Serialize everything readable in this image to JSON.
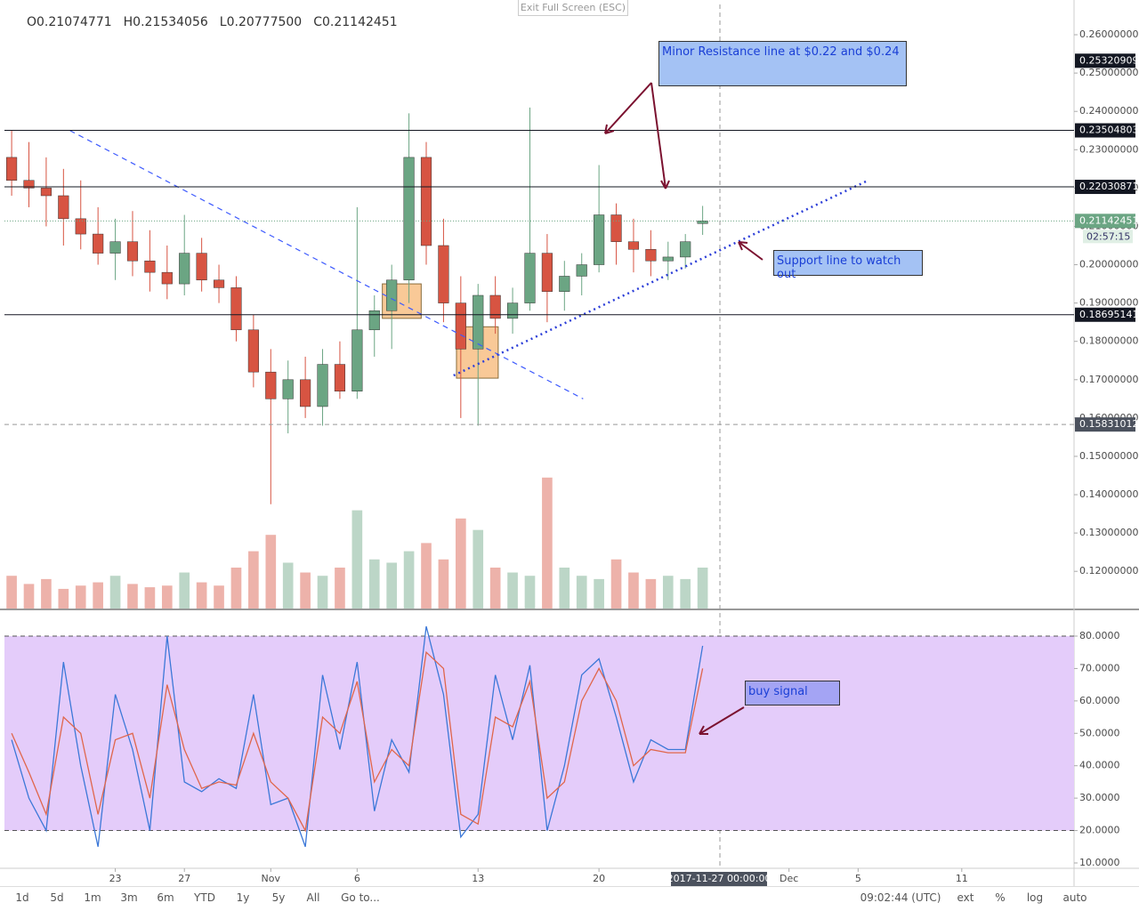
{
  "toolbar": {
    "exit_fullscreen": "Exit Full Screen (ESC)",
    "ohlc": [
      "O0.21074771",
      "H0.21534056",
      "L0.20777500",
      "C0.21142451"
    ],
    "ranges": [
      "1d",
      "5d",
      "1m",
      "3m",
      "6m",
      "YTD",
      "1y",
      "5y",
      "All",
      "Go to..."
    ],
    "clock": "09:02:44 (UTC)",
    "options": [
      "ext",
      "%",
      "log",
      "auto"
    ]
  },
  "chart_data": [
    {
      "type": "candlestick",
      "x": [
        "2017-10-17",
        "2017-10-18",
        "2017-10-19",
        "2017-10-20",
        "2017-10-21",
        "2017-10-22",
        "2017-10-23",
        "2017-10-24",
        "2017-10-25",
        "2017-10-26",
        "2017-10-27",
        "2017-10-28",
        "2017-10-29",
        "2017-10-30",
        "2017-10-31",
        "2017-11-01",
        "2017-11-02",
        "2017-11-03",
        "2017-11-04",
        "2017-11-05",
        "2017-11-06",
        "2017-11-07",
        "2017-11-08",
        "2017-11-09",
        "2017-11-10",
        "2017-11-11",
        "2017-11-12",
        "2017-11-13",
        "2017-11-14",
        "2017-11-15",
        "2017-11-16",
        "2017-11-17",
        "2017-11-18",
        "2017-11-19",
        "2017-11-20",
        "2017-11-21",
        "2017-11-22",
        "2017-11-23",
        "2017-11-24",
        "2017-11-25",
        "2017-11-26"
      ],
      "open": [
        0.228,
        0.222,
        0.22,
        0.218,
        0.212,
        0.208,
        0.203,
        0.206,
        0.201,
        0.198,
        0.195,
        0.203,
        0.196,
        0.194,
        0.183,
        0.172,
        0.165,
        0.17,
        0.163,
        0.174,
        0.167,
        0.183,
        0.188,
        0.196,
        0.228,
        0.205,
        0.19,
        0.178,
        0.192,
        0.186,
        0.19,
        0.203,
        0.193,
        0.197,
        0.2,
        0.213,
        0.206,
        0.204,
        0.201,
        0.202,
        0.21074771
      ],
      "high": [
        0.235,
        0.232,
        0.228,
        0.225,
        0.222,
        0.215,
        0.212,
        0.214,
        0.209,
        0.205,
        0.213,
        0.207,
        0.2,
        0.197,
        0.187,
        0.178,
        0.175,
        0.176,
        0.178,
        0.18,
        0.215,
        0.192,
        0.2,
        0.2395,
        0.232,
        0.212,
        0.197,
        0.195,
        0.197,
        0.194,
        0.241,
        0.208,
        0.201,
        0.203,
        0.226,
        0.216,
        0.212,
        0.209,
        0.206,
        0.208,
        0.21534056
      ],
      "low": [
        0.218,
        0.215,
        0.21,
        0.205,
        0.204,
        0.2,
        0.196,
        0.197,
        0.193,
        0.191,
        0.192,
        0.193,
        0.19,
        0.18,
        0.168,
        0.1375,
        0.156,
        0.16,
        0.158,
        0.165,
        0.165,
        0.176,
        0.178,
        0.19,
        0.2,
        0.185,
        0.16,
        0.158,
        0.182,
        0.182,
        0.188,
        0.185,
        0.188,
        0.192,
        0.198,
        0.2,
        0.198,
        0.197,
        0.196,
        0.199,
        0.207775
      ],
      "close": [
        0.222,
        0.22,
        0.218,
        0.212,
        0.208,
        0.203,
        0.206,
        0.201,
        0.198,
        0.195,
        0.203,
        0.196,
        0.194,
        0.183,
        0.172,
        0.165,
        0.17,
        0.163,
        0.174,
        0.167,
        0.183,
        0.188,
        0.196,
        0.228,
        0.205,
        0.19,
        0.178,
        0.192,
        0.186,
        0.19,
        0.203,
        0.193,
        0.197,
        0.2,
        0.213,
        0.206,
        0.204,
        0.201,
        0.202,
        0.206,
        0.21142451
      ],
      "up_color": "#6ba583",
      "down_color": "#d75442",
      "volume": {
        "values": [
          20,
          15,
          18,
          12,
          14,
          16,
          20,
          15,
          13,
          14,
          22,
          16,
          14,
          25,
          35,
          45,
          28,
          22,
          20,
          25,
          60,
          30,
          28,
          35,
          40,
          30,
          55,
          48,
          25,
          22,
          20,
          80,
          25,
          20,
          18,
          30,
          22,
          18,
          20,
          18,
          25
        ],
        "lim": [
          0,
          100
        ]
      },
      "xlim": [
        "2017-10-16 14:00",
        "2017-12-17 12:00"
      ],
      "xticks": [
        {
          "value": "2017-10-23",
          "label": "23"
        },
        {
          "value": "2017-10-27",
          "label": "27"
        },
        {
          "value": "2017-11-01",
          "label": "Nov"
        },
        {
          "value": "2017-11-06",
          "label": "6"
        },
        {
          "value": "2017-11-13",
          "label": "13"
        },
        {
          "value": "2017-11-20",
          "label": "20"
        },
        {
          "value": "2017-12-01",
          "label": "Dec"
        },
        {
          "value": "2017-12-05",
          "label": "5"
        },
        {
          "value": "2017-12-11",
          "label": "11"
        }
      ],
      "ylim": [
        0.1103,
        0.2679
      ],
      "yticks": [
        {
          "value": 0.26,
          "label": "0.26000000"
        },
        {
          "value": 0.25,
          "label": "0.25000000"
        },
        {
          "value": 0.24,
          "label": "0.24000000"
        },
        {
          "value": 0.23,
          "label": "0.23000000"
        },
        {
          "value": 0.22,
          "label": "0.22000000"
        },
        {
          "value": 0.21,
          "label": "0.21000000"
        },
        {
          "value": 0.2,
          "label": "0.20000000"
        },
        {
          "value": 0.19,
          "label": "0.19000000"
        },
        {
          "value": 0.18,
          "label": "0.18000000"
        },
        {
          "value": 0.17,
          "label": "0.17000000"
        },
        {
          "value": 0.16,
          "label": "0.16000000"
        },
        {
          "value": 0.15,
          "label": "0.15000000"
        },
        {
          "value": 0.14,
          "label": "0.14000000"
        },
        {
          "value": 0.13,
          "label": "0.13000000"
        },
        {
          "value": 0.12,
          "label": "0.12000000"
        }
      ],
      "price_markers": [
        {
          "value": 0.25320909,
          "label": "0.25320909",
          "color": "#131722",
          "line": false
        },
        {
          "value": 0.23504803,
          "label": "0.23504803",
          "color": "#131722",
          "line": true
        },
        {
          "value": 0.22030871,
          "label": "0.22030871",
          "color": "#131722",
          "line": true
        },
        {
          "value": 0.21142451,
          "label": "0.21142451",
          "color": "#6ba583",
          "line": true
        },
        {
          "value": 0.18695141,
          "label": "0.18695141",
          "color": "#131722",
          "line": true
        }
      ],
      "countdown": "02:57:15",
      "crosshair": {
        "x": "2017-11-27 00:00:00",
        "y": {
          "value": 0.15831012,
          "label": "0.15831012"
        }
      },
      "trend_lines": [
        {
          "style": "dashed",
          "color": "#3d5afe",
          "points": [
            [
              "2017-10-20 09:00",
              0.235
            ],
            [
              "2017-11-19 02:00",
              0.165
            ]
          ]
        },
        {
          "style": "dotted",
          "color": "#2d3fd8",
          "points": [
            [
              "2017-11-11 14:00",
              0.1711
            ],
            [
              "2017-12-05 13:00",
              0.2219
            ]
          ]
        }
      ],
      "boxes": [
        {
          "color": "#f6b26b",
          "x": [
            "2017-11-07 11:00",
            "2017-11-09 17:00"
          ],
          "y": [
            0.186,
            0.195
          ]
        },
        {
          "color": "#f6b26b",
          "x": [
            "2017-11-11 18:00",
            "2017-11-14 04:00"
          ],
          "y": [
            0.1704,
            0.1838
          ]
        }
      ],
      "annotations": [
        "Minor Resistance  line at $0.22 and $0.24",
        "Support line to watch out"
      ]
    },
    {
      "type": "line",
      "series": [
        {
          "color": "#3c78d8",
          "values": [
            48,
            30,
            20,
            72,
            40,
            15,
            62,
            45,
            20,
            80,
            35,
            32,
            36,
            33,
            62,
            28,
            30,
            15,
            68,
            45,
            72,
            26,
            48,
            38,
            83,
            62,
            18,
            25,
            68,
            48,
            71,
            20,
            40,
            68,
            73,
            55,
            35,
            48,
            45,
            45,
            77
          ]
        },
        {
          "color": "#e0664b",
          "values": [
            50,
            38,
            25,
            55,
            50,
            25,
            48,
            50,
            30,
            65,
            45,
            33,
            35,
            34,
            50,
            35,
            30,
            20,
            55,
            50,
            66,
            35,
            45,
            40,
            75,
            70,
            25,
            22,
            55,
            52,
            66,
            30,
            35,
            60,
            70,
            60,
            40,
            45,
            44,
            44,
            70
          ]
        }
      ],
      "ylim": [
        8.35,
        87.96
      ],
      "yticks": [
        {
          "value": 80,
          "label": "80.0000"
        },
        {
          "value": 70,
          "label": "70.0000"
        },
        {
          "value": 60,
          "label": "60.0000"
        },
        {
          "value": 50,
          "label": "50.0000"
        },
        {
          "value": 40,
          "label": "40.0000"
        },
        {
          "value": 30,
          "label": "30.0000"
        },
        {
          "value": 20,
          "label": "20.0000"
        },
        {
          "value": 10,
          "label": "10.0000"
        }
      ],
      "bands": [
        20,
        80
      ],
      "band_color": "#e4ccfa",
      "annotations": [
        "buy signal"
      ]
    }
  ]
}
